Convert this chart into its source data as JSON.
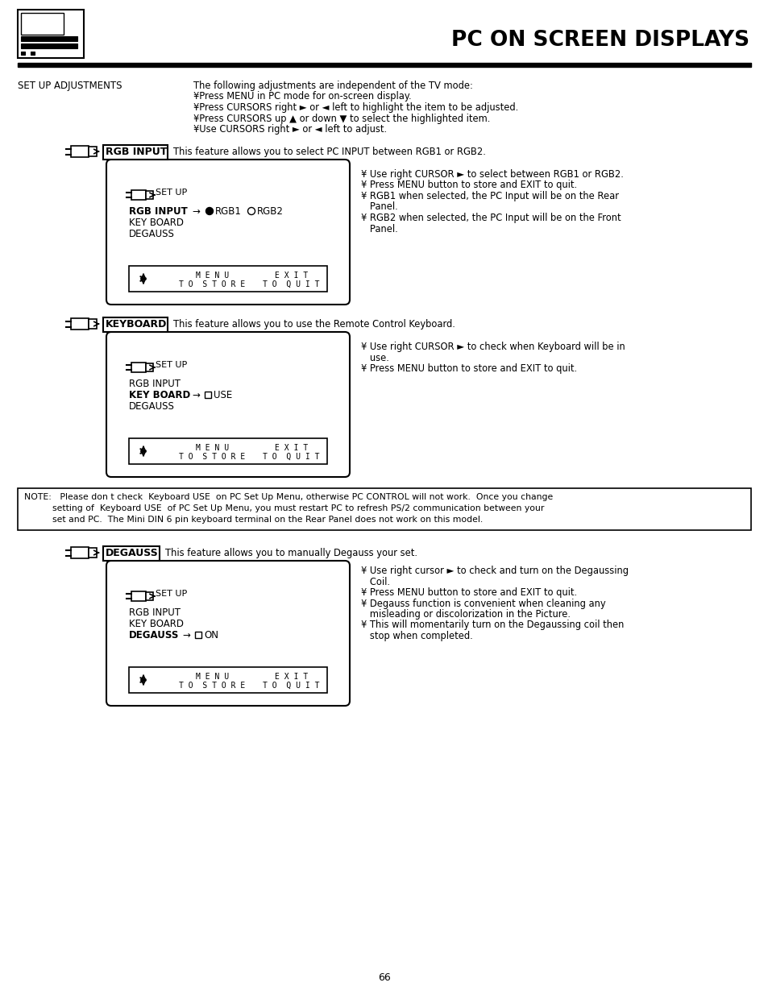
{
  "title": "PC ON SCREEN DISPLAYS",
  "page_number": "66",
  "bg_color": "#ffffff",
  "text_color": "#000000",
  "section_header_setup": "SET UP ADJUSTMENTS",
  "setup_lines": [
    "The following adjustments are independent of the TV mode:",
    "¥Press MENU in PC mode for on-screen display.",
    "¥Press CURSORS right ► or ◄ left to highlight the item to be adjusted.",
    "¥Press CURSORS up ▲ or down ▼ to select the highlighted item.",
    "¥Use CURSORS right ► or ◄ left to adjust."
  ],
  "rgb_label": "RGB INPUT",
  "rgb_desc": "This feature allows you to select PC INPUT between RGB1 or RGB2.",
  "rgb_bullets": [
    "¥ Use right CURSOR ► to select between RGB1 or RGB2.",
    "¥ Press MENU button to store and EXIT to quit.",
    "¥ RGB1 when selected, the PC Input will be on the Rear",
    "   Panel.",
    "¥ RGB2 when selected, the PC Input will be on the Front",
    "   Panel."
  ],
  "keyboard_label": "KEYBOARD",
  "keyboard_desc": "This feature allows you to use the Remote Control Keyboard.",
  "keyboard_bullets": [
    "¥ Use right CURSOR ► to check when Keyboard will be in",
    "   use.",
    "¥ Press MENU button to store and EXIT to quit."
  ],
  "note_line1": "NOTE:   Please don t check  Keyboard USE  on PC Set Up Menu, otherwise PC CONTROL will not work.  Once you change",
  "note_line2": "          setting of  Keyboard USE  of PC Set Up Menu, you must restart PC to refresh PS/2 communication between your",
  "note_line3": "          set and PC.  The Mini DIN 6 pin keyboard terminal on the Rear Panel does not work on this model.",
  "degauss_label": "DEGAUSS",
  "degauss_desc": "This feature allows you to manually Degauss your set.",
  "degauss_bullets": [
    "¥ Use right cursor ► to check and turn on the Degaussing",
    "   Coil.",
    "¥ Press MENU button to store and EXIT to quit.",
    "¥ Degauss function is convenient when cleaning any",
    "   misleading or discolorization in the Picture.",
    "¥ This will momentarily turn on the Degaussing coil then",
    "   stop when completed."
  ]
}
